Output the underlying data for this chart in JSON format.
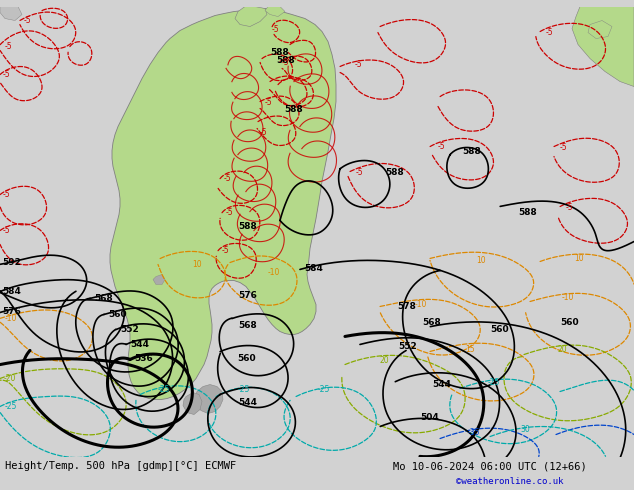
{
  "title_left": "Height/Temp. 500 hPa [gdmp][°C] ECMWF",
  "title_right": "Mo 10-06-2024 06:00 UTC (12+66)",
  "credit": "©weatheronline.co.uk",
  "bg_color": "#d2d2d2",
  "land_color": "#b4d98a",
  "land_edge": "#808080",
  "fig_width": 6.34,
  "fig_height": 4.9,
  "dpi": 100
}
